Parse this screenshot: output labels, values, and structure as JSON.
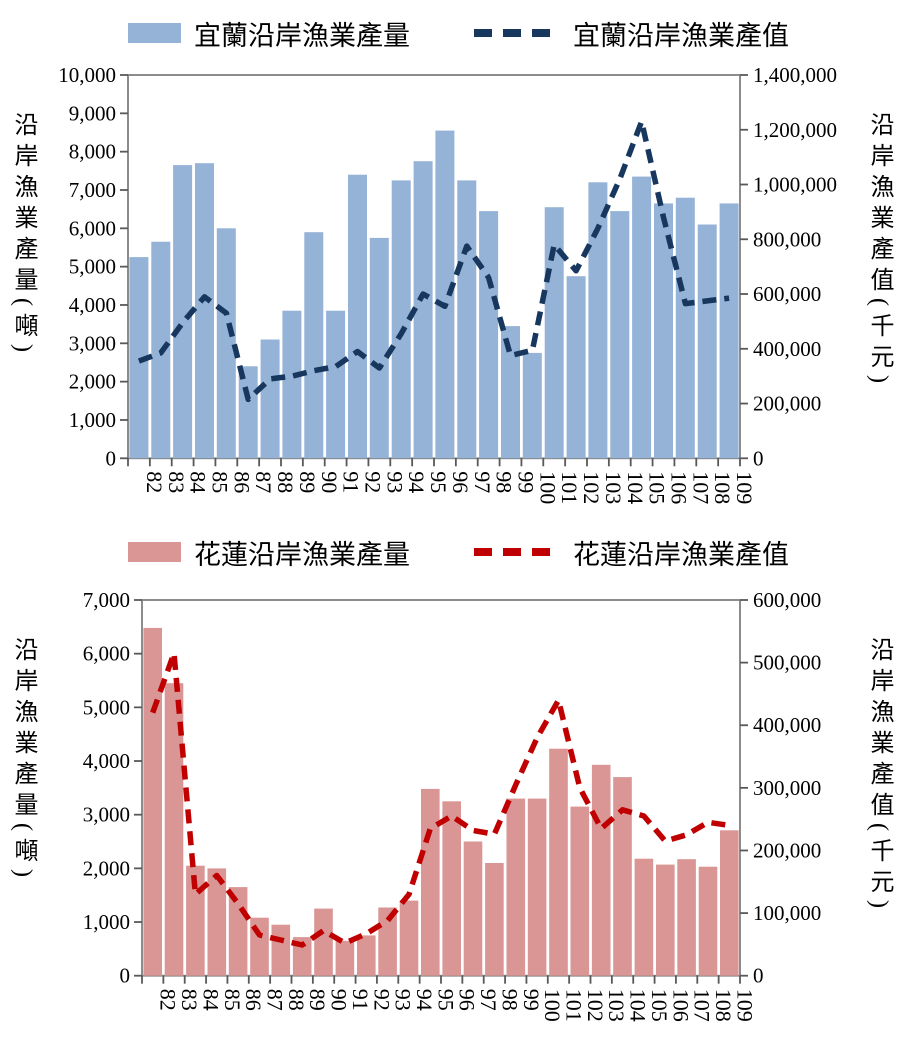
{
  "legend_top": {
    "bar_label": "宜蘭沿岸漁業產量",
    "line_label": "宜蘭沿岸漁業產值"
  },
  "legend_bottom": {
    "bar_label": "花蓮沿岸漁業產量",
    "line_label": "花蓮沿岸漁業產值"
  },
  "colors": {
    "yilan_bar": "#95B3D7",
    "yilan_line": "#17375E",
    "hualien_bar": "#D99694",
    "hualien_line": "#C00000",
    "frame": "#808080",
    "tick": "#595959"
  },
  "chart_data": [
    {
      "type": "bar+line",
      "region": "宜蘭",
      "categories": [
        "82",
        "83",
        "84",
        "85",
        "86",
        "87",
        "88",
        "89",
        "90",
        "91",
        "92",
        "93",
        "94",
        "95",
        "96",
        "97",
        "98",
        "99",
        "100",
        "101",
        "102",
        "103",
        "104",
        "105",
        "106",
        "107",
        "108",
        "109"
      ],
      "series": [
        {
          "name": "宜蘭沿岸漁業產量",
          "type": "bar",
          "axis": "left",
          "color": "#95B3D7",
          "values": [
            5250,
            5650,
            7650,
            7700,
            6000,
            2400,
            3100,
            3850,
            5900,
            3850,
            7400,
            5750,
            7250,
            7750,
            8550,
            7250,
            6450,
            3450,
            2750,
            6550,
            4750,
            7200,
            6450,
            7350,
            6650,
            6800,
            6100,
            6650
          ]
        },
        {
          "name": "宜蘭沿岸漁業產值",
          "type": "line",
          "axis": "right",
          "dashed": true,
          "color": "#17375E",
          "values": [
            355000,
            385000,
            495000,
            590000,
            530000,
            215000,
            290000,
            300000,
            320000,
            335000,
            390000,
            330000,
            455000,
            600000,
            555000,
            775000,
            660000,
            375000,
            395000,
            780000,
            685000,
            840000,
            1020000,
            1230000,
            880000,
            565000,
            575000,
            585000
          ]
        }
      ],
      "left_axis": {
        "title": "沿岸漁業產量(噸)",
        "min": 0,
        "max": 10000,
        "step": 1000
      },
      "right_axis": {
        "title": "沿岸漁業產值(千元)",
        "min": 0,
        "max": 1400000,
        "step": 200000
      },
      "legend_position": "top",
      "grid": false
    },
    {
      "type": "bar+line",
      "region": "花蓮",
      "categories": [
        "82",
        "83",
        "84",
        "85",
        "86",
        "87",
        "88",
        "89",
        "90",
        "91",
        "92",
        "93",
        "94",
        "95",
        "96",
        "97",
        "98",
        "99",
        "100",
        "101",
        "102",
        "103",
        "104",
        "105",
        "106",
        "107",
        "108",
        "109"
      ],
      "series": [
        {
          "name": "花蓮沿岸漁業產量",
          "type": "bar",
          "axis": "left",
          "color": "#D99694",
          "values": [
            6480,
            5450,
            2050,
            2000,
            1650,
            1080,
            950,
            720,
            1250,
            650,
            750,
            1270,
            1400,
            3480,
            3250,
            2500,
            2100,
            3300,
            3300,
            4230,
            3150,
            3930,
            3700,
            2180,
            2070,
            2170,
            2030,
            2710
          ]
        },
        {
          "name": "花蓮沿岸漁業產值",
          "type": "line",
          "axis": "right",
          "dashed": true,
          "color": "#C00000",
          "values": [
            420000,
            515000,
            130000,
            160000,
            115000,
            65000,
            57000,
            49000,
            72000,
            52000,
            67000,
            88000,
            130000,
            235000,
            255000,
            232000,
            226000,
            305000,
            380000,
            440000,
            300000,
            235000,
            265000,
            255000,
            215000,
            225000,
            245000,
            240000
          ]
        }
      ],
      "left_axis": {
        "title": "沿岸漁業產量(噸)",
        "min": 0,
        "max": 7000,
        "step": 1000
      },
      "right_axis": {
        "title": "沿岸漁業產值(千元)",
        "min": 0,
        "max": 600000,
        "step": 100000
      },
      "legend_position": "top",
      "grid": false
    }
  ]
}
